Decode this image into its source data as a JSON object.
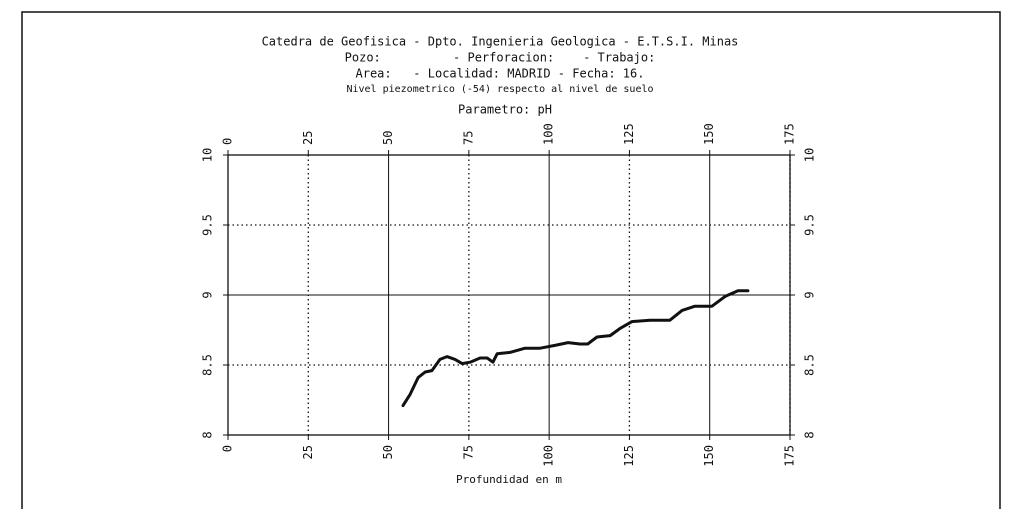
{
  "chart_data": {
    "type": "line",
    "title_lines": [
      "Catedra de Geofisica - Dpto. Ingenieria Geologica - E.T.S.I. Minas",
      "Pozo:          - Perforacion:    - Trabajo:",
      "Area:   - Localidad: MADRID - Fecha: 16.",
      "Nivel piezometrico (-54) respecto al nivel de suelo"
    ],
    "title": "Parametro: pH",
    "xlabel": "Profundidad en m",
    "x": [
      54.5,
      56.7,
      59.2,
      61.4,
      63.5,
      66,
      68.2,
      70.7,
      72.9,
      75.4,
      78.5,
      80.7,
      82.5,
      83.8,
      87.8,
      92.5,
      97.2,
      101.8,
      105.9,
      109.6,
      112,
      114.9,
      119,
      122,
      125.8,
      131.4,
      137.6,
      141.4,
      145.4,
      150.7,
      154.8,
      158.8,
      161.9
    ],
    "series": [
      {
        "color": "#111111",
        "values": [
          8.21,
          8.29,
          8.41,
          8.45,
          8.46,
          8.54,
          8.56,
          8.54,
          8.51,
          8.52,
          8.55,
          8.55,
          8.52,
          8.58,
          8.59,
          8.62,
          8.62,
          8.64,
          8.66,
          8.65,
          8.65,
          8.7,
          8.71,
          8.76,
          8.81,
          8.82,
          8.82,
          8.89,
          8.92,
          8.92,
          8.99,
          9.03,
          9.03
        ]
      }
    ],
    "xlim": [
      0,
      175
    ],
    "xticks": [
      0,
      25,
      50,
      75,
      100,
      125,
      150,
      175
    ],
    "ylim": [
      8,
      10
    ],
    "yticks": [
      8,
      8.5,
      9,
      9.5,
      10
    ],
    "grid": true
  }
}
